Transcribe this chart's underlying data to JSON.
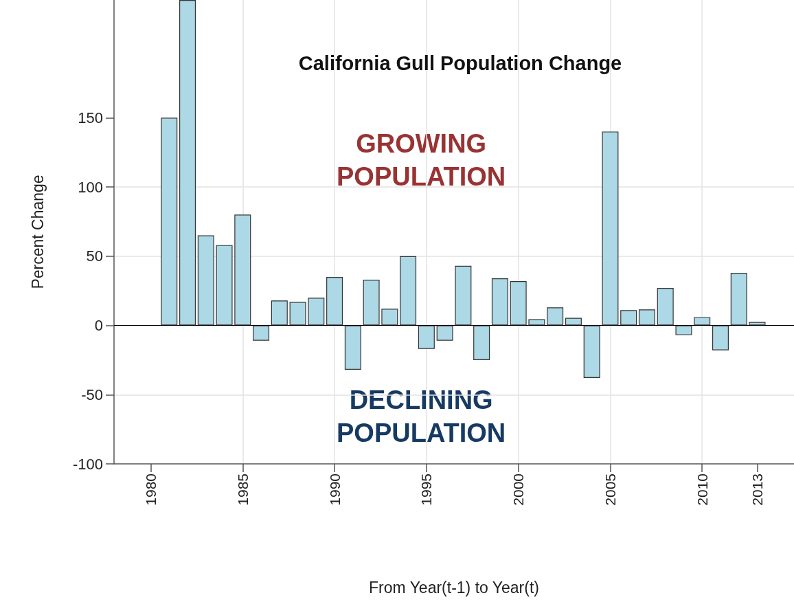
{
  "chart_data": {
    "type": "bar",
    "title": "California Gull Population Change",
    "xlabel": "From Year(t-1) to Year(t)",
    "ylabel": "Percent Change",
    "annotations": [
      "GROWING\nPOPULATION",
      "DECLINING\nPOPULATION"
    ],
    "x": [
      1981,
      1982,
      1983,
      1984,
      1985,
      1986,
      1987,
      1988,
      1989,
      1990,
      1991,
      1992,
      1993,
      1994,
      1995,
      1996,
      1997,
      1998,
      1999,
      2000,
      2001,
      2002,
      2003,
      2004,
      2005,
      2006,
      2007,
      2008,
      2009,
      2010,
      2011,
      2012,
      2013
    ],
    "values": [
      150,
      235,
      65,
      58,
      80,
      -11,
      18,
      17,
      20,
      35,
      -32,
      33,
      12,
      50,
      -17,
      -11,
      43,
      -25,
      34,
      32,
      4.5,
      13,
      5.5,
      -38,
      140,
      11,
      11.5,
      27,
      -7,
      6,
      -18,
      38,
      2.5
    ],
    "color": "#add8e6",
    "xlim": [
      1978,
      2015
    ],
    "xticks": [
      1980,
      1985,
      1990,
      1995,
      2000,
      2005,
      2010,
      2013
    ],
    "ylim": [
      -100,
      235
    ],
    "yticks": [
      -100,
      -50,
      0,
      50,
      100,
      150
    ],
    "ref_lines": [
      {
        "axis": "y",
        "value": 0,
        "color": "#000000"
      }
    ],
    "grid": true
  }
}
